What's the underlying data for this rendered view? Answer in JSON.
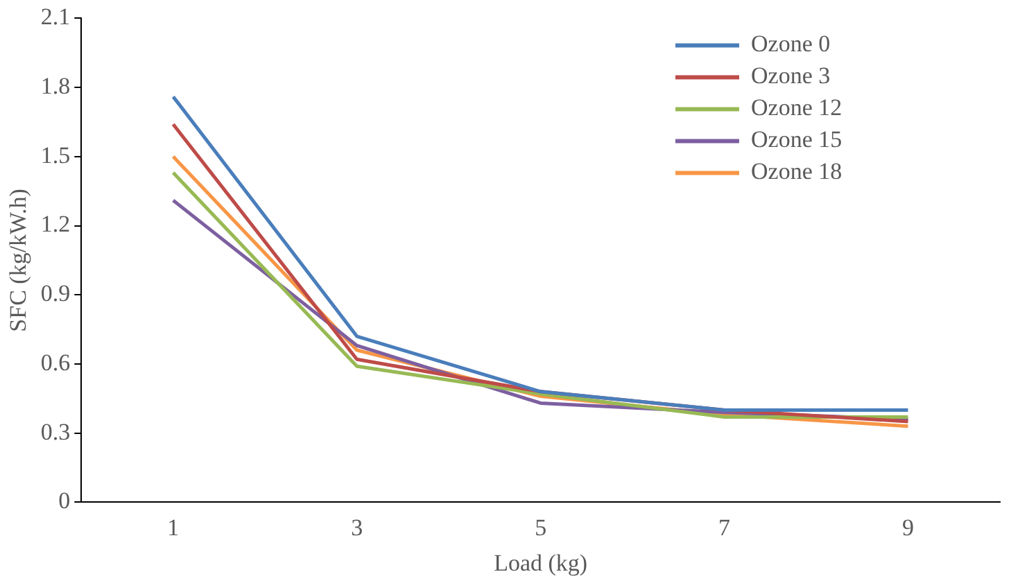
{
  "chart_data": {
    "type": "line",
    "xlabel": "Load (kg)",
    "ylabel": "SFC (kg/kW.h)",
    "categories": [
      "1",
      "3",
      "5",
      "7",
      "9"
    ],
    "series": [
      {
        "name": "Ozone 0",
        "color": "#4a7ebb",
        "values": [
          1.76,
          0.72,
          0.48,
          0.4,
          0.4
        ]
      },
      {
        "name": "Ozone 3",
        "color": "#be4b48",
        "values": [
          1.64,
          0.62,
          0.48,
          0.4,
          0.35
        ]
      },
      {
        "name": "Ozone 12",
        "color": "#98b954",
        "values": [
          1.43,
          0.59,
          0.47,
          0.37,
          0.37
        ]
      },
      {
        "name": "Ozone 15",
        "color": "#7d5fa0",
        "values": [
          1.31,
          0.68,
          0.43,
          0.39,
          0.36
        ]
      },
      {
        "name": "Ozone 18",
        "color": "#f79646",
        "values": [
          1.5,
          0.66,
          0.46,
          0.38,
          0.33
        ]
      }
    ],
    "ylim": [
      0,
      2.1
    ],
    "yticks": [
      0,
      0.3,
      0.6,
      0.9,
      1.2,
      1.5,
      1.8,
      2.1
    ],
    "grid": false,
    "legend": "top right",
    "marker": "none",
    "line_style": "solid"
  }
}
